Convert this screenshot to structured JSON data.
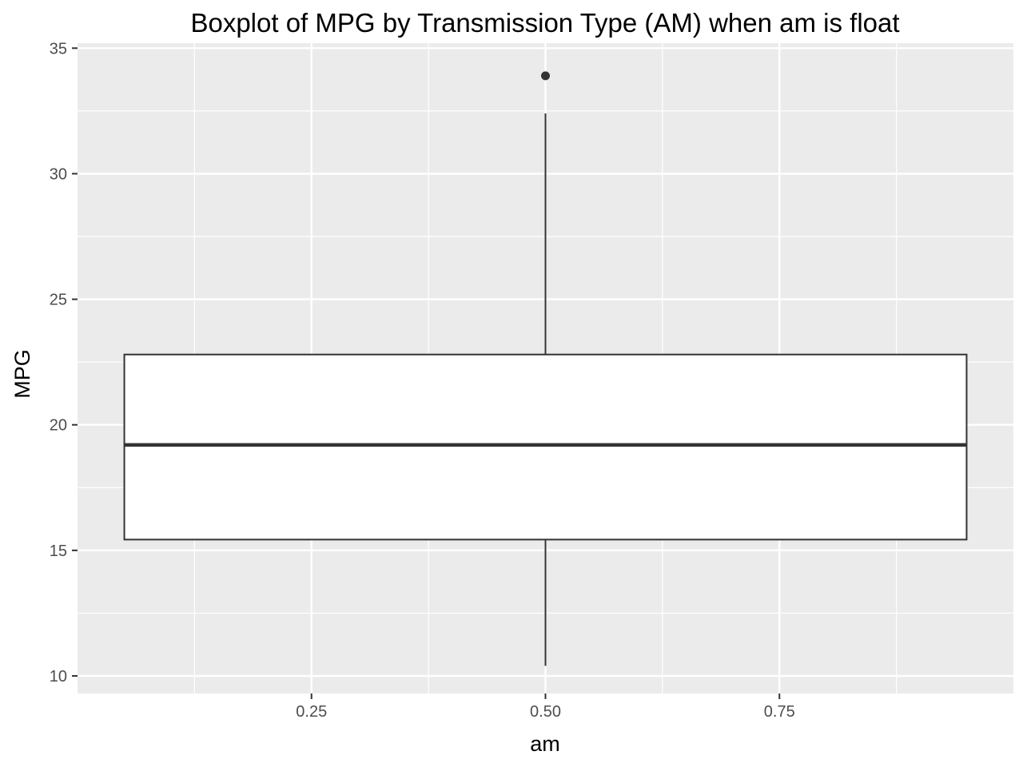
{
  "chart_data": {
    "type": "boxplot",
    "title": "Boxplot of MPG by Transmission Type (AM) when am is float",
    "xlabel": "am",
    "ylabel": "MPG",
    "xlim": [
      0.0,
      1.0
    ],
    "ylim": [
      9.3,
      35.2
    ],
    "x_ticks": [
      0.25,
      0.5,
      0.75
    ],
    "x_tick_labels": [
      "0.25",
      "0.50",
      "0.75"
    ],
    "y_ticks": [
      10,
      15,
      20,
      25,
      30,
      35
    ],
    "y_tick_labels": [
      "10",
      "15",
      "20",
      "25",
      "30",
      "35"
    ],
    "grid": true,
    "legend": "none",
    "box": {
      "x_center": 0.5,
      "x_min": 0.05,
      "x_max": 0.95,
      "whisker_low": 10.4,
      "q1": 15.43,
      "median": 19.2,
      "q3": 22.8,
      "whisker_high": 32.4,
      "outliers": [
        33.9
      ]
    },
    "colors": {
      "panel": "#ebebeb",
      "grid": "#ffffff",
      "box_fill": "#ffffff",
      "box_line": "#333333",
      "tick_text": "#4d4d4d"
    }
  }
}
